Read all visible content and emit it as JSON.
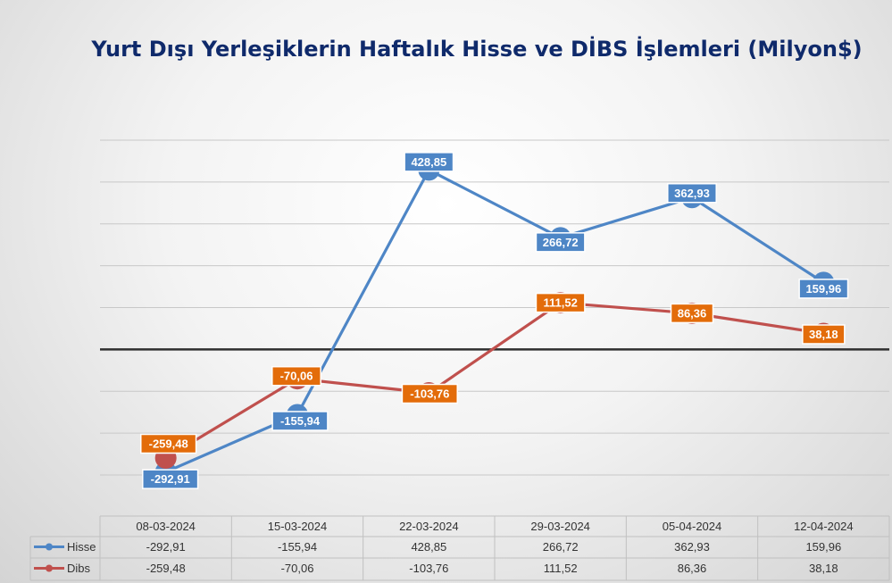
{
  "chart_data": {
    "type": "line",
    "title": "Yurt Dışı Yerleşiklerin Haftalık Hisse ve DİBS İşlemleri (Milyon$)",
    "categories": [
      "08-03-2024",
      "15-03-2024",
      "22-03-2024",
      "29-03-2024",
      "05-04-2024",
      "12-04-2024"
    ],
    "series": [
      {
        "name": "Hisse",
        "color": "#4e86c6",
        "label_bg": "#4e86c6",
        "values": [
          -292.91,
          -155.94,
          428.85,
          266.72,
          362.93,
          159.96
        ],
        "labels": [
          "-292,91",
          "-155,94",
          "428,85",
          "266,72",
          "362,93",
          "159,96"
        ]
      },
      {
        "name": "Dibs",
        "color": "#c0504d",
        "label_bg": "#e36c0a",
        "values": [
          -259.48,
          -70.06,
          -103.76,
          111.52,
          86.36,
          38.18
        ],
        "labels": [
          "-259,48",
          "-70,06",
          "-103,76",
          "111,52",
          "86,36",
          "38,18"
        ]
      }
    ],
    "ylim": [
      -300,
      500
    ],
    "gridlines": true,
    "zero_line": true,
    "data_table": true,
    "legend": "in-table"
  }
}
